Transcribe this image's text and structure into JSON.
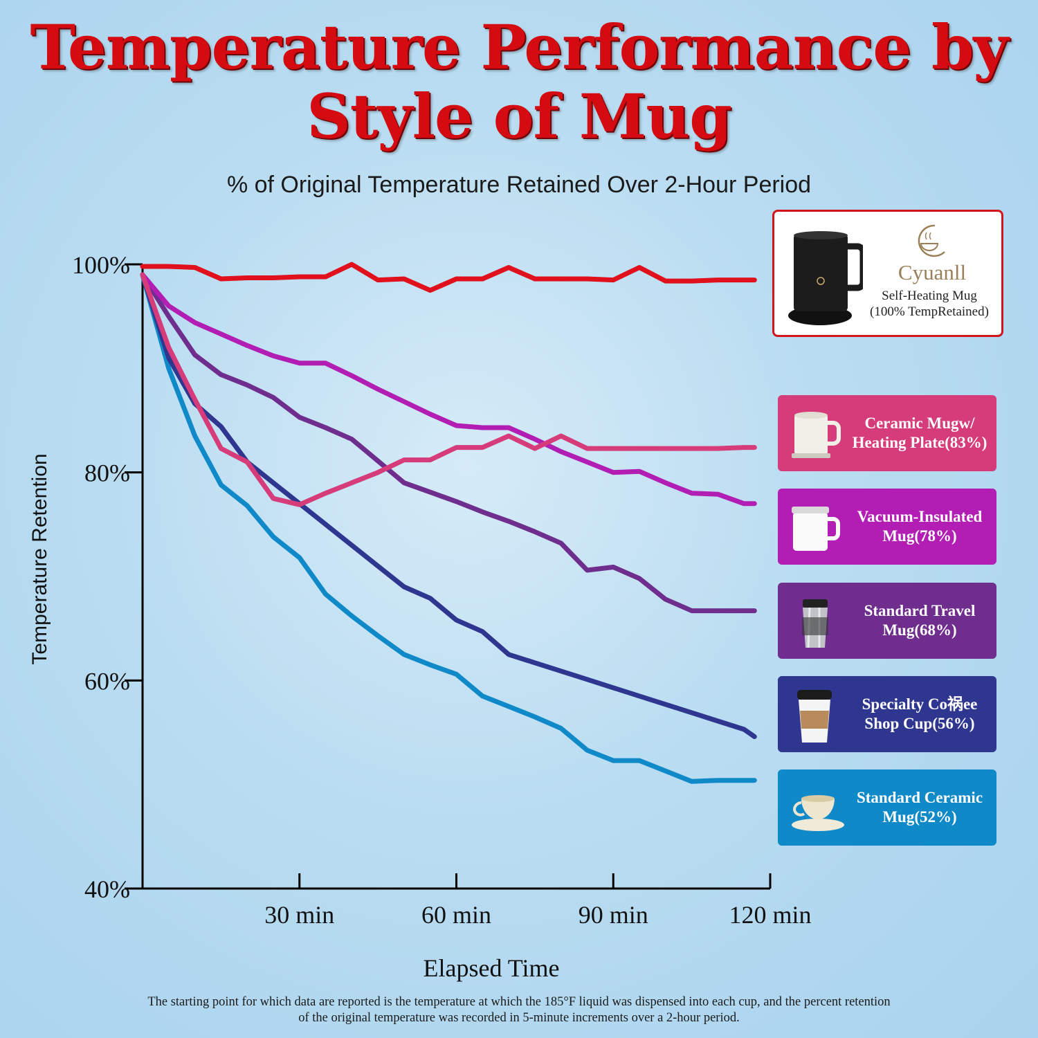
{
  "header": {
    "title_line1": "Temperature Performance by",
    "title_line2": "Style of Mug",
    "subtitle": "% of Original Temperature Retained Over 2-Hour Period"
  },
  "featured": {
    "brand": "Cyuanll",
    "label_line1": "Self-Heating Mug",
    "label_line2": "(100% TempRetained)"
  },
  "legend": [
    {
      "label": "Ceramic Mugw/ Heating Plate(83%)",
      "color": "#d63b7a"
    },
    {
      "label": "Vacuum-Insulated Mug(78%)",
      "color": "#b21db4"
    },
    {
      "label": "Standard Travel Mug(68%)",
      "color": "#6f2e8e"
    },
    {
      "label": "Specialty Co祸ee Shop Cup(56%)",
      "color": "#2f3690"
    },
    {
      "label": "Standard Ceramic Mug(52%)",
      "color": "#1089c8"
    }
  ],
  "chart_data": {
    "type": "line",
    "title": "Temperature Performance by Style of Mug",
    "subtitle": "% of Original Temperature Retained Over 2-Hour Period",
    "xlabel": "Elapsed Time",
    "ylabel": "Temperature Retention",
    "xlim": [
      0,
      120
    ],
    "ylim": [
      40,
      100
    ],
    "x_ticks": [
      30,
      60,
      90,
      120
    ],
    "x_tick_labels": [
      "30 min",
      "60 min",
      "90 min",
      "120 min"
    ],
    "y_ticks": [
      40,
      60,
      80,
      100
    ],
    "y_tick_labels": [
      "40%",
      "60%",
      "80%",
      "100%"
    ],
    "x": [
      0,
      5,
      10,
      15,
      20,
      25,
      30,
      35,
      40,
      45,
      50,
      55,
      60,
      65,
      70,
      75,
      80,
      85,
      90,
      95,
      100,
      105,
      110,
      115,
      117
    ],
    "series": [
      {
        "name": "Self-Heating Mug",
        "color": "#e0101c",
        "values": [
          99.8,
          99.8,
          99.7,
          98.6,
          98.7,
          98.7,
          98.8,
          98.8,
          100,
          98.5,
          98.6,
          97.5,
          98.6,
          98.6,
          99.7,
          98.6,
          98.6,
          98.6,
          98.5,
          99.7,
          98.4,
          98.4,
          98.5,
          98.5,
          98.5
        ]
      },
      {
        "name": "Ceramic Mugw/ Heating Plate",
        "color": "#d63b7a",
        "values": [
          99,
          92,
          87,
          82.3,
          81,
          77.5,
          76.9,
          78,
          79,
          80,
          81.2,
          81.2,
          82.4,
          82.4,
          83.5,
          82.3,
          83.5,
          82.3,
          82.3,
          82.3,
          82.3,
          82.3,
          82.3,
          82.4,
          82.4
        ]
      },
      {
        "name": "Vacuum-Insulated Mug",
        "color": "#b21db4",
        "values": [
          99,
          96,
          94.4,
          93.3,
          92.2,
          91.2,
          90.5,
          90.5,
          89.3,
          88,
          86.8,
          85.6,
          84.5,
          84.3,
          84.3,
          83.2,
          82,
          81,
          80,
          80.1,
          79,
          78,
          77.9,
          77,
          77
        ]
      },
      {
        "name": "Standard Travel Mug",
        "color": "#6f2e8e",
        "values": [
          99,
          95,
          91.3,
          89.4,
          88.4,
          87.2,
          85.3,
          84.3,
          83.2,
          81.1,
          79,
          78.1,
          77.2,
          76.2,
          75.3,
          74.3,
          73.2,
          70.6,
          70.9,
          69.8,
          67.8,
          66.7,
          66.7,
          66.7,
          66.7
        ]
      },
      {
        "name": "Specialty Co祸ee Shop Cup",
        "color": "#2f3690",
        "values": [
          99,
          91,
          86.6,
          84.4,
          81,
          79,
          77,
          75,
          73,
          71,
          69,
          67.9,
          65.8,
          64.7,
          62.5,
          61.7,
          60.9,
          60.1,
          59.3,
          58.5,
          57.7,
          56.9,
          56.1,
          55.3,
          54.6
        ]
      },
      {
        "name": "Standard Ceramic Mug",
        "color": "#1089c8",
        "values": [
          99,
          90,
          83.5,
          78.8,
          76.8,
          73.8,
          71.8,
          68.3,
          66.2,
          64.3,
          62.5,
          61.5,
          60.6,
          58.5,
          57.5,
          56.5,
          55.4,
          53.3,
          52.3,
          52.3,
          51.3,
          50.3,
          50.4,
          50.4,
          50.4
        ]
      }
    ],
    "note_line1": "The starting point for which data are reported is the temperature at which the 185°F liquid was dispensed into each cup, and the percent retention",
    "note_line2": "of the original temperature was recorded in 5-minute increments over a 2-hour period."
  }
}
